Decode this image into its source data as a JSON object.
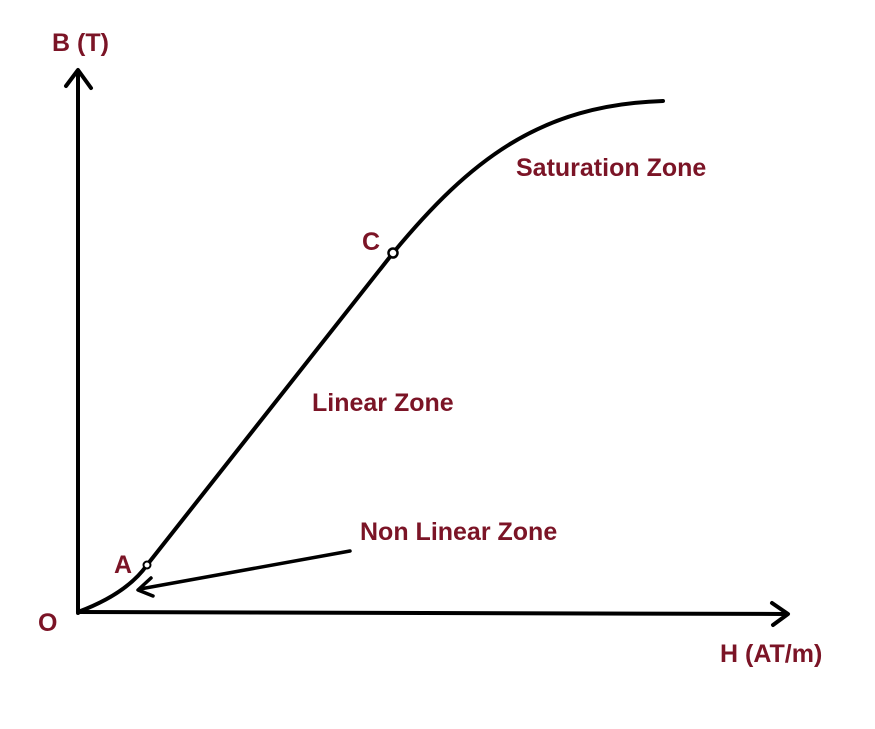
{
  "diagram": {
    "y_axis_label": "B (T)",
    "x_axis_label": "H (AT/m)",
    "origin_label": "O",
    "point_a_label": "A",
    "point_c_label": "C",
    "saturation_zone_label": "Saturation Zone",
    "linear_zone_label": "Linear Zone",
    "non_linear_zone_label": "Non Linear Zone"
  },
  "colors": {
    "label_color": "#7b1426",
    "line_color": "#000000"
  }
}
